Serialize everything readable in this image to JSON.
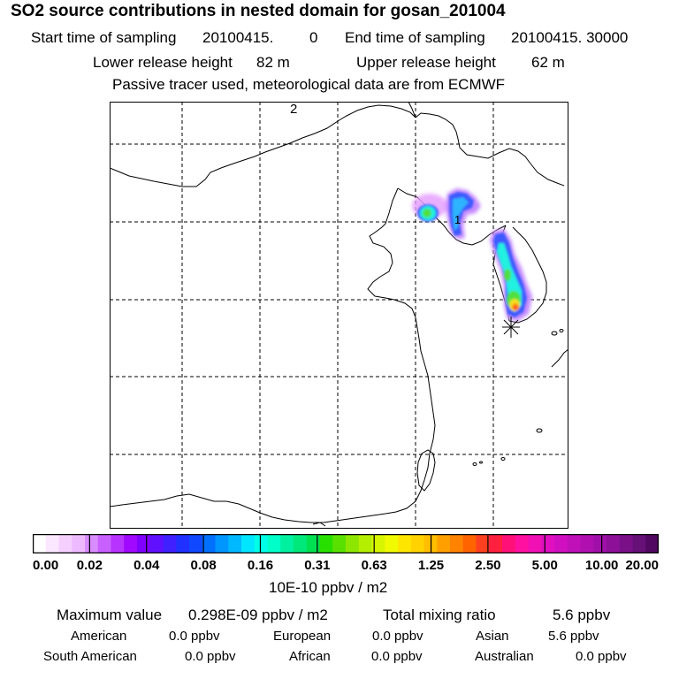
{
  "header": {
    "title": "SO2 source contributions in nested domain for gosan_201004",
    "start_label": "Start time of sampling",
    "start_value": "20100415.",
    "start_hour": "0",
    "end_label": "End time of sampling",
    "end_value": "20100415. 30000",
    "lower_label": "Lower release height",
    "lower_value": "82 m",
    "upper_label": "Upper release height",
    "upper_value": "62 m",
    "note": "Passive tracer used, meteorological data are from ECMWF"
  },
  "map": {
    "labels": [
      "2",
      "1"
    ],
    "colors": {
      "frame": "#000000",
      "coast": "#000000",
      "grid": "#000000",
      "source_marker": "#000000"
    },
    "plume_levels": {
      "outer": "#e6a0ff",
      "blue": "#3c5aff",
      "light_blue": "#2fb4ff",
      "cyan": "#20f0e0",
      "green": "#50e040",
      "yellow": "#f0e020",
      "orange": "#ff9010",
      "red": "#ff3030"
    }
  },
  "colorbar": {
    "ticks": [
      "0.00",
      "0.02",
      "0.04",
      "0.08",
      "0.16",
      "0.31",
      "0.63",
      "1.25",
      "2.50",
      "5.00",
      "10.00",
      "20.00"
    ],
    "colors": [
      "#ffffff",
      "#fbe7ff",
      "#f5d0ff",
      "#eebaff",
      "#d98cff",
      "#c860ff",
      "#b734ff",
      "#a008ff",
      "#8000ff",
      "#6010ff",
      "#4020ff",
      "#2030ff",
      "#1048ff",
      "#0070ff",
      "#0096ff",
      "#00b8ff",
      "#00e6ff",
      "#00ffe6",
      "#00ffc8",
      "#00f0a0",
      "#00e87a",
      "#00e050",
      "#28e000",
      "#5ae000",
      "#8ce600",
      "#b4ee00",
      "#d8f500",
      "#f0fa00",
      "#ffe600",
      "#ffd200",
      "#ffbe00",
      "#ffa000",
      "#ff8200",
      "#ff6400",
      "#ff4020",
      "#ff2040",
      "#ff1078",
      "#ff10a0",
      "#f010b4",
      "#e010c0",
      "#d010c0",
      "#c010b8",
      "#b010b0",
      "#a010a8",
      "#8c1098",
      "#7a1088",
      "#661078",
      "#500860"
    ],
    "units": "10E-10 ppbv / m2"
  },
  "stats": {
    "max_label": "Maximum value",
    "max_value": "0.298E-09 ppbv / m2",
    "total_label": "Total mixing ratio",
    "total_value": "5.6 ppbv",
    "sources": [
      {
        "name": "American",
        "value": "0.0 ppbv"
      },
      {
        "name": "European",
        "value": "0.0 ppbv"
      },
      {
        "name": "Asian",
        "value": "5.6 ppbv"
      },
      {
        "name": "South American",
        "value": "0.0 ppbv"
      },
      {
        "name": "African",
        "value": "0.0 ppbv"
      },
      {
        "name": "Australian",
        "value": "0.0 ppbv"
      }
    ]
  }
}
